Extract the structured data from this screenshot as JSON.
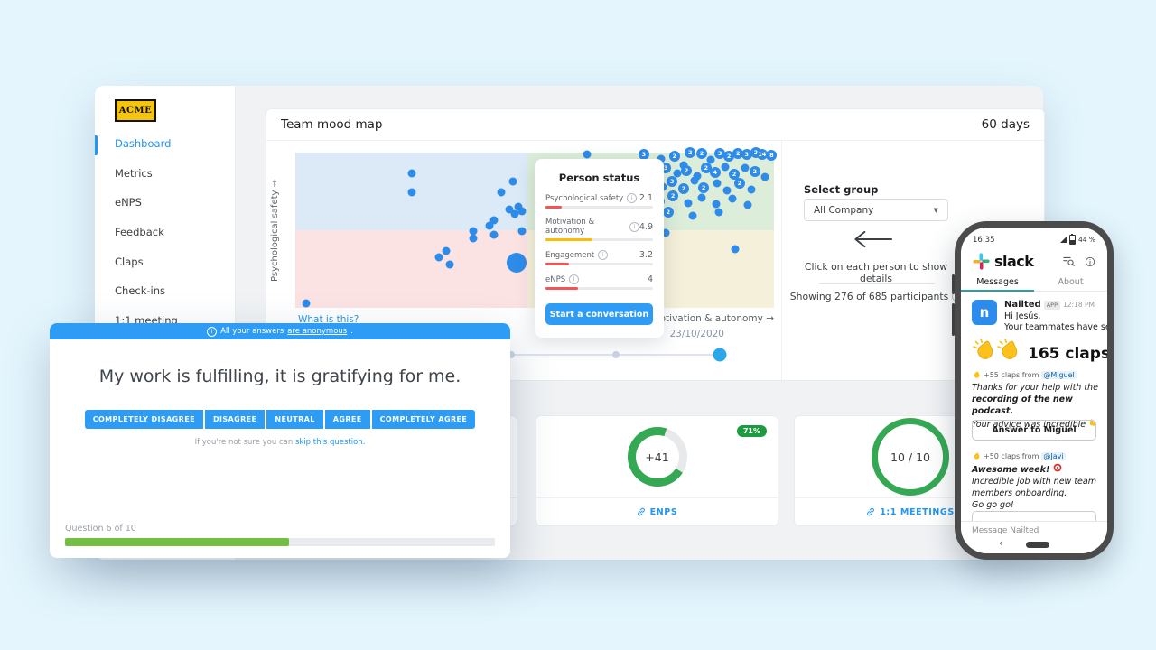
{
  "sidebar": {
    "logo": "ACME",
    "items": [
      {
        "label": "Dashboard"
      },
      {
        "label": "Metrics"
      },
      {
        "label": "eNPS"
      },
      {
        "label": "Feedback"
      },
      {
        "label": "Claps"
      },
      {
        "label": "Check-ins"
      },
      {
        "label": "1:1 meeting"
      }
    ]
  },
  "mood_map": {
    "title": "Team mood map",
    "range_label": "60 days",
    "y_axis": "Psychological safety →",
    "x_axis": "Motivation & autonomy →",
    "what_is_this": "What is this?",
    "close_icon": "×",
    "controls": {
      "select_group_label": "Select group",
      "select_group_value": "All Company",
      "hint": "Click on each person to show details",
      "showing": "Showing 276 of 685 participants",
      "slider_date": "23/10/2020"
    },
    "person_card": {
      "title": "Person status",
      "metrics": [
        {
          "label": "Psychological safety",
          "value": "2.1",
          "pct": 15,
          "color": "#f65354"
        },
        {
          "label": "Motivation & autonomy",
          "value": "4.9",
          "pct": 44,
          "color": "#fbbc05"
        },
        {
          "label": "Engagement",
          "value": "3.2",
          "pct": 22,
          "color": "#f65354"
        },
        {
          "label": "eNPS",
          "value": "4",
          "pct": 30,
          "color": "#f65354"
        }
      ],
      "button": "Start a conversation"
    },
    "scatter": {
      "dot_color": "#2e8be8",
      "dots": [
        {
          "x": 24.3,
          "y": 13.4
        },
        {
          "x": 24.3,
          "y": 25.6
        },
        {
          "x": 45.5,
          "y": 18.6
        },
        {
          "x": 43,
          "y": 25.6
        },
        {
          "x": 46.6,
          "y": 34.9
        },
        {
          "x": 44.7,
          "y": 36.6
        },
        {
          "x": 45.8,
          "y": 39.5
        },
        {
          "x": 47.4,
          "y": 37.8
        },
        {
          "x": 41.5,
          "y": 43.6
        },
        {
          "x": 40.6,
          "y": 47.1
        },
        {
          "x": 37.2,
          "y": 50.6
        },
        {
          "x": 41.5,
          "y": 52.9
        },
        {
          "x": 37.2,
          "y": 55.2
        },
        {
          "x": 47.4,
          "y": 50.6
        },
        {
          "x": 31.5,
          "y": 63.4
        },
        {
          "x": 30,
          "y": 67.4
        },
        {
          "x": 32.3,
          "y": 72.1
        },
        {
          "x": 2.3,
          "y": 97
        },
        {
          "x": 60.9,
          "y": 1.2
        },
        {
          "x": 91.9,
          "y": 62.2
        },
        {
          "x": 77.4,
          "y": 51.7
        },
        {
          "x": 46.2,
          "y": 70.9,
          "s": 22
        },
        {
          "x": 72.8,
          "y": 1.2,
          "l": "3"
        },
        {
          "x": 76.4,
          "y": 4
        },
        {
          "x": 79.2,
          "y": 2.3,
          "l": "2"
        },
        {
          "x": 81.1,
          "y": 8.1
        },
        {
          "x": 82.5,
          "y": 0,
          "l": "2"
        },
        {
          "x": 84.9,
          "y": 0.6,
          "l": "2"
        },
        {
          "x": 86.8,
          "y": 4.7
        },
        {
          "x": 88.7,
          "y": 0.6,
          "l": "3"
        },
        {
          "x": 90.6,
          "y": 2.3,
          "l": "2"
        },
        {
          "x": 92.5,
          "y": 0.6,
          "l": "2"
        },
        {
          "x": 94.3,
          "y": 1.2,
          "l": "3"
        },
        {
          "x": 96.2,
          "y": 0,
          "l": "2"
        },
        {
          "x": 97.5,
          "y": 1.2,
          "l": "14"
        },
        {
          "x": 99.5,
          "y": 1.7,
          "l": "8"
        },
        {
          "x": 73.6,
          "y": 9.9,
          "l": "2"
        },
        {
          "x": 75.5,
          "y": 12.2,
          "l": "2"
        },
        {
          "x": 77.4,
          "y": 9.9,
          "l": "3"
        },
        {
          "x": 79.8,
          "y": 13.4
        },
        {
          "x": 81.7,
          "y": 11.6,
          "l": "2"
        },
        {
          "x": 84,
          "y": 15.1
        },
        {
          "x": 85.8,
          "y": 9.9,
          "l": "2"
        },
        {
          "x": 87.7,
          "y": 12.8,
          "l": "4"
        },
        {
          "x": 89.8,
          "y": 9.3
        },
        {
          "x": 91.7,
          "y": 14,
          "l": "2"
        },
        {
          "x": 94,
          "y": 9.9
        },
        {
          "x": 96,
          "y": 12.2,
          "l": "2"
        },
        {
          "x": 98.1,
          "y": 15.7
        },
        {
          "x": 74.5,
          "y": 19.8,
          "l": "4"
        },
        {
          "x": 76.8,
          "y": 22.1
        },
        {
          "x": 78.7,
          "y": 18.6,
          "l": "3"
        },
        {
          "x": 81.1,
          "y": 23.3,
          "l": "2"
        },
        {
          "x": 83.4,
          "y": 18
        },
        {
          "x": 85.3,
          "y": 22.7,
          "l": "2"
        },
        {
          "x": 88.1,
          "y": 19.8
        },
        {
          "x": 90.2,
          "y": 24.4
        },
        {
          "x": 92.8,
          "y": 19.8,
          "l": "2"
        },
        {
          "x": 95.3,
          "y": 23.8
        },
        {
          "x": 73.2,
          "y": 28.5
        },
        {
          "x": 76,
          "y": 31.4,
          "l": "2"
        },
        {
          "x": 78.9,
          "y": 27.9,
          "l": "2"
        },
        {
          "x": 82.1,
          "y": 32.6
        },
        {
          "x": 84.9,
          "y": 29.1
        },
        {
          "x": 87.9,
          "y": 33.1
        },
        {
          "x": 91.3,
          "y": 29.7
        },
        {
          "x": 94.5,
          "y": 33.7
        },
        {
          "x": 77.9,
          "y": 38.4,
          "l": "2"
        },
        {
          "x": 83,
          "y": 40.7
        },
        {
          "x": 88.5,
          "y": 38.4
        }
      ]
    }
  },
  "stat_cards": {
    "enps": {
      "value": "+41",
      "badge": "71%",
      "pct": 71,
      "color": "#34a853",
      "link": "ENPS"
    },
    "meetings": {
      "value": "10 / 10",
      "link": "1:1 MEETINGS"
    }
  },
  "survey": {
    "banner_prefix": "All your answers",
    "banner_link": "are anonymous",
    "banner_period": ".",
    "question": "My work is fulfilling, it is gratifying for me.",
    "answers": [
      "COMPLETELY DISAGREE",
      "DISAGREE",
      "NEUTRAL",
      "AGREE",
      "COMPLETELY AGREE"
    ],
    "skip_prefix": "If you're not sure you can",
    "skip_link": "skip this question.",
    "progress_label": "Question 6 of 10",
    "progress_pct": 52
  },
  "phone": {
    "status_time": "16:35",
    "battery": "44 %",
    "brand": "slack",
    "tab_messages": "Messages",
    "tab_about": "About",
    "message": {
      "sender": "Nailted",
      "badge": "APP",
      "time": "12:18 PM",
      "line1": "Hi Jesús,",
      "line2": "Your teammates have sent you...",
      "claps_headline": "165 claps!",
      "clap1_meta": "+55 claps from",
      "clap1_mention": "@Miguel",
      "clap1_body1": "Thanks for your help with the",
      "clap1_body2": "recording of the new podcast.",
      "clap1_body3": "Your advice was incredible",
      "clap1_button": "Answer to Miguel",
      "clap2_meta": "+50 claps from",
      "clap2_mention": "@Javi",
      "clap2_title": "Awesome week!",
      "clap2_body1": "Incredible job with new team",
      "clap2_body2": "members onboarding.",
      "clap2_body3": "Go go go!",
      "composer_placeholder": "Message Nailted"
    }
  }
}
